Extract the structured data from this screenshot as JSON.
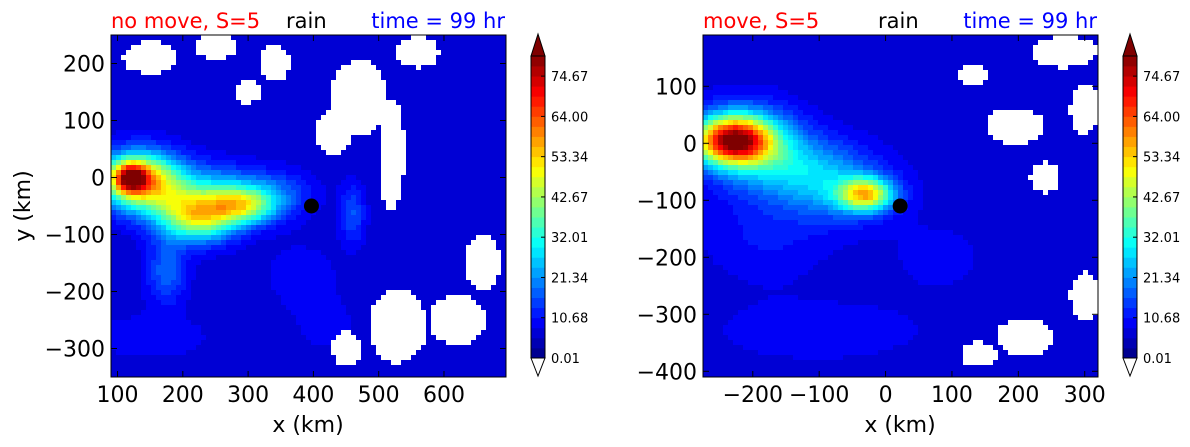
{
  "chart_data": [
    {
      "type": "heatmap",
      "variant": "filled-contour",
      "title_left": "no move, S=5",
      "title_center": "rain",
      "title_right": "time = 99 hr",
      "title_colors": {
        "left": "#ff0000",
        "center": "#000000",
        "right": "#0000ff"
      },
      "xlabel": "x (km)",
      "ylabel": "y (km)",
      "xlim": [
        90,
        695
      ],
      "ylim": [
        -350,
        250
      ],
      "xticks": [
        100,
        200,
        300,
        400,
        500,
        600
      ],
      "xtick_labels": [
        "100",
        "200",
        "300",
        "400",
        "500",
        "600"
      ],
      "yticks": [
        -300,
        -200,
        -100,
        0,
        100,
        200
      ],
      "ytick_labels": [
        "−300",
        "−200",
        "−100",
        "0",
        "100",
        "200"
      ],
      "background_level": 0.02,
      "marker": {
        "x": 397,
        "y": -50,
        "color": "#000000"
      },
      "blobs": [
        {
          "x": 135,
          "y": -5,
          "sx": 45,
          "sy": 35,
          "amp": 48
        },
        {
          "x": 120,
          "y": 0,
          "sx": 18,
          "sy": 18,
          "amp": 40
        },
        {
          "x": 225,
          "y": -70,
          "sx": 40,
          "sy": 30,
          "amp": 35
        },
        {
          "x": 195,
          "y": -40,
          "sx": 45,
          "sy": 35,
          "amp": 14
        },
        {
          "x": 290,
          "y": -50,
          "sx": 35,
          "sy": 22,
          "amp": 30
        },
        {
          "x": 330,
          "y": -30,
          "sx": 45,
          "sy": 30,
          "amp": 13
        },
        {
          "x": 175,
          "y": -165,
          "sx": 22,
          "sy": 40,
          "amp": 12
        },
        {
          "x": 260,
          "y": -15,
          "sx": 35,
          "sy": 30,
          "amp": 9
        },
        {
          "x": 460,
          "y": -65,
          "sx": 14,
          "sy": 38,
          "amp": 10
        },
        {
          "x": 150,
          "y": -280,
          "sx": 70,
          "sy": 30,
          "amp": 4
        },
        {
          "x": 380,
          "y": -170,
          "sx": 40,
          "sy": 40,
          "amp": 4
        },
        {
          "x": 420,
          "y": -260,
          "sx": 40,
          "sy": 40,
          "amp": 3
        }
      ],
      "holes": [
        {
          "x": 150,
          "y": 210,
          "sx": 38,
          "sy": 26
        },
        {
          "x": 250,
          "y": 230,
          "sx": 30,
          "sy": 20
        },
        {
          "x": 300,
          "y": 150,
          "sx": 20,
          "sy": 18
        },
        {
          "x": 340,
          "y": 200,
          "sx": 22,
          "sy": 28
        },
        {
          "x": 470,
          "y": 140,
          "sx": 40,
          "sy": 60
        },
        {
          "x": 430,
          "y": 80,
          "sx": 25,
          "sy": 35
        },
        {
          "x": 520,
          "y": 40,
          "sx": 18,
          "sy": 90
        },
        {
          "x": 560,
          "y": 220,
          "sx": 30,
          "sy": 25
        },
        {
          "x": 530,
          "y": -260,
          "sx": 40,
          "sy": 60
        },
        {
          "x": 450,
          "y": -300,
          "sx": 20,
          "sy": 30
        },
        {
          "x": 620,
          "y": -250,
          "sx": 40,
          "sy": 40
        },
        {
          "x": 660,
          "y": -150,
          "sx": 25,
          "sy": 45
        }
      ]
    },
    {
      "type": "heatmap",
      "variant": "filled-contour",
      "title_left": "move, S=5",
      "title_center": "rain",
      "title_right": "time = 99 hr",
      "title_colors": {
        "left": "#ff0000",
        "center": "#000000",
        "right": "#0000ff"
      },
      "xlabel": "x (km)",
      "ylabel": "",
      "xlim": [
        -275,
        320
      ],
      "ylim": [
        -410,
        190
      ],
      "xticks": [
        -200,
        -100,
        0,
        100,
        200,
        300
      ],
      "xtick_labels": [
        "−200",
        "−100",
        "0",
        "100",
        "200",
        "300"
      ],
      "yticks": [
        -400,
        -300,
        -200,
        -100,
        0,
        100
      ],
      "ytick_labels": [
        "−400",
        "−300",
        "−200",
        "−100",
        "0",
        "100"
      ],
      "background_level": 0.02,
      "marker": {
        "x": 22,
        "y": -110,
        "color": "#000000"
      },
      "blobs": [
        {
          "x": -230,
          "y": 5,
          "sx": 40,
          "sy": 28,
          "amp": 60
        },
        {
          "x": -210,
          "y": 10,
          "sx": 55,
          "sy": 45,
          "amp": 18
        },
        {
          "x": -140,
          "y": -40,
          "sx": 70,
          "sy": 40,
          "amp": 16
        },
        {
          "x": -30,
          "y": -90,
          "sx": 28,
          "sy": 20,
          "amp": 40
        },
        {
          "x": -70,
          "y": -85,
          "sx": 60,
          "sy": 40,
          "amp": 12
        },
        {
          "x": -180,
          "y": -160,
          "sx": 70,
          "sy": 60,
          "amp": 5
        },
        {
          "x": -100,
          "y": -330,
          "sx": 120,
          "sy": 40,
          "amp": 4
        },
        {
          "x": 80,
          "y": -200,
          "sx": 60,
          "sy": 50,
          "amp": 3
        }
      ],
      "holes": [
        {
          "x": 270,
          "y": 160,
          "sx": 45,
          "sy": 25
        },
        {
          "x": 195,
          "y": 30,
          "sx": 40,
          "sy": 30
        },
        {
          "x": 130,
          "y": 120,
          "sx": 20,
          "sy": 18
        },
        {
          "x": 240,
          "y": -60,
          "sx": 20,
          "sy": 25
        },
        {
          "x": 300,
          "y": 60,
          "sx": 20,
          "sy": 40
        },
        {
          "x": 210,
          "y": -340,
          "sx": 40,
          "sy": 30
        },
        {
          "x": 140,
          "y": -370,
          "sx": 25,
          "sy": 20
        },
        {
          "x": 300,
          "y": -270,
          "sx": 20,
          "sy": 40
        }
      ]
    }
  ],
  "colorbar": {
    "levels_min": 0.01,
    "levels_max": 80,
    "n_levels": 30,
    "tick_values": [
      0.01,
      10.68,
      21.34,
      32.01,
      42.67,
      53.34,
      64.0,
      74.67
    ],
    "tick_labels": [
      "0.01",
      "10.68",
      "21.34",
      "32.01",
      "42.67",
      "53.34",
      "64.00",
      "74.67"
    ],
    "extend": "both",
    "under_color": "#ffffff",
    "over_color": "#7f0000",
    "colormap": "jet"
  }
}
